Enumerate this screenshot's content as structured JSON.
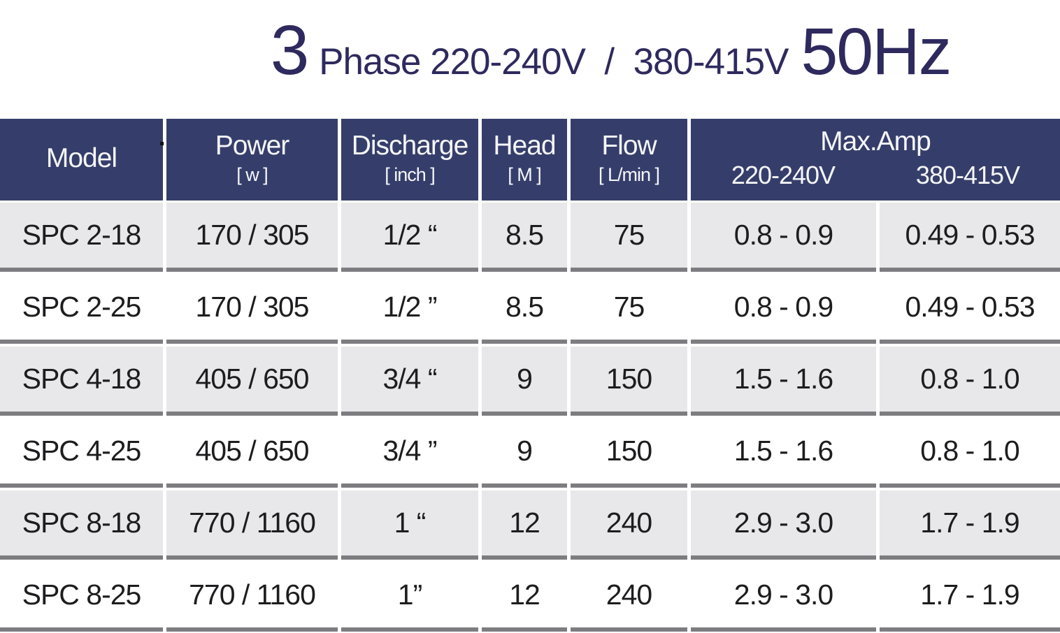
{
  "title": {
    "phase_count": "3",
    "voltage_text": " Phase 220-240V  /  380-415V",
    "frequency": "50Hz"
  },
  "table": {
    "headers": {
      "model": "Model",
      "power": {
        "label": "Power",
        "unit": "[ w ]"
      },
      "discharge": {
        "label": "Discharge",
        "unit": "[ inch ]"
      },
      "head": {
        "label": "Head",
        "unit": "[ M ]"
      },
      "flow": {
        "label": "Flow",
        "unit": "[ L/min ]"
      },
      "max_amp": {
        "label": "Max.Amp",
        "sub_220": "220-240V",
        "sub_380": "380-415V"
      }
    },
    "rows": [
      {
        "model": "SPC 2-18",
        "power": "170 / 305",
        "discharge": "1/2 “",
        "head": "8.5",
        "flow": "75",
        "amp_220": "0.8 - 0.9",
        "amp_380": "0.49 - 0.53"
      },
      {
        "model": "SPC 2-25",
        "power": "170 / 305",
        "discharge": "1/2 ”",
        "head": "8.5",
        "flow": "75",
        "amp_220": "0.8 - 0.9",
        "amp_380": "0.49 - 0.53"
      },
      {
        "model": "SPC 4-18",
        "power": "405 / 650",
        "discharge": "3/4 “",
        "head": "9",
        "flow": "150",
        "amp_220": "1.5 - 1.6",
        "amp_380": "0.8 - 1.0"
      },
      {
        "model": "SPC 4-25",
        "power": "405 / 650",
        "discharge": "3/4 ”",
        "head": "9",
        "flow": "150",
        "amp_220": "1.5 - 1.6",
        "amp_380": "0.8 - 1.0"
      },
      {
        "model": "SPC 8-18",
        "power": "770 / 1160",
        "discharge": "1 “",
        "head": "12",
        "flow": "240",
        "amp_220": "2.9 - 3.0",
        "amp_380": "1.7 - 1.9"
      },
      {
        "model": "SPC 8-25",
        "power": "770 / 1160",
        "discharge": "1”",
        "head": "12",
        "flow": "240",
        "amp_220": "2.9 - 3.0",
        "amp_380": "1.7 - 1.9"
      }
    ]
  },
  "colors": {
    "header_bg": "#353e6b",
    "title_text": "#2e2a5e",
    "row_alt_bg": "#e8e8ea",
    "row_bg": "#ffffff",
    "separator": "#7d7d81",
    "cell_text": "#1d1d1f",
    "header_text": "#f6f6f8"
  }
}
